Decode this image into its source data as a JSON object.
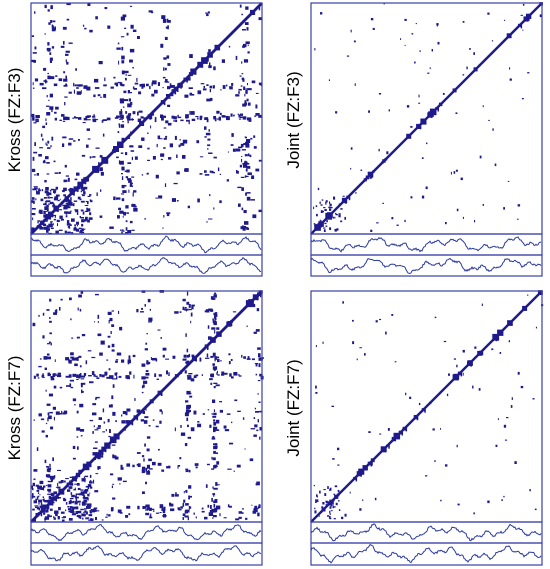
{
  "panels": [
    {
      "id": "kross-f3",
      "label": "Kross (FZ:F3)",
      "kind": "cross",
      "seed": 11,
      "density": 0.95
    },
    {
      "id": "joint-f3",
      "label": "Joint (FZ:F3)",
      "kind": "joint",
      "seed": 23,
      "density": 0.35
    },
    {
      "id": "kross-f7",
      "label": "Kross (FZ:F7)",
      "kind": "cross",
      "seed": 37,
      "density": 1.0
    },
    {
      "id": "joint-f7",
      "label": "Joint (FZ:F7)",
      "kind": "joint",
      "seed": 53,
      "density": 0.3
    }
  ],
  "colors": {
    "points": "#1f1a8c",
    "frame": "#3a3fa8",
    "trace": "#2b3aa0"
  }
}
